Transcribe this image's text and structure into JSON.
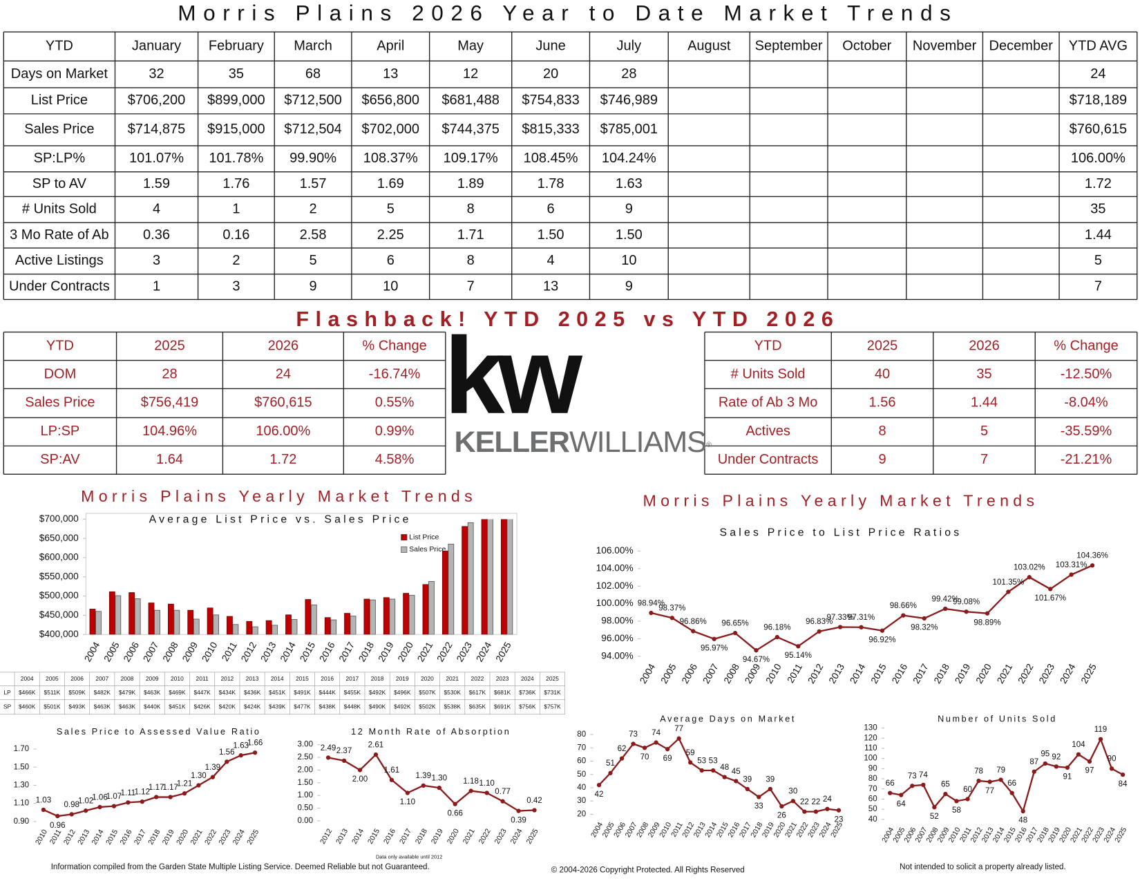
{
  "title": "Morris Plains 2026 Year to Date Market Trends",
  "table": {
    "header": [
      "YTD",
      "January",
      "February",
      "March",
      "April",
      "May",
      "June",
      "July",
      "August",
      "September",
      "October",
      "November",
      "December",
      "YTD AVG"
    ],
    "rows": [
      {
        "label": "Days on Market",
        "values": [
          "32",
          "35",
          "68",
          "13",
          "12",
          "20",
          "28"
        ],
        "avg": "24"
      },
      {
        "label": "List Price",
        "values": [
          "$706,200",
          "$899,000",
          "$712,500",
          "$656,800",
          "$681,488",
          "$754,833",
          "$746,989"
        ],
        "avg": "$718,189"
      },
      {
        "label": "Sales Price",
        "values": [
          "$714,875",
          "$915,000",
          "$712,504",
          "$702,000",
          "$744,375",
          "$815,333",
          "$785,001"
        ],
        "avg": "$760,615"
      },
      {
        "label": "SP:LP%",
        "values": [
          "101.07%",
          "101.78%",
          "99.90%",
          "108.37%",
          "109.17%",
          "108.45%",
          "104.24%"
        ],
        "avg": "106.00%"
      },
      {
        "label": "SP to AV",
        "values": [
          "1.59",
          "1.76",
          "1.57",
          "1.69",
          "1.89",
          "1.78",
          "1.63"
        ],
        "avg": "1.72"
      },
      {
        "label": "# Units Sold",
        "values": [
          "4",
          "1",
          "2",
          "5",
          "8",
          "6",
          "9"
        ],
        "avg": "35"
      },
      {
        "label": "3 Mo Rate of Ab",
        "values": [
          "0.36",
          "0.16",
          "2.58",
          "2.25",
          "1.71",
          "1.50",
          "1.50"
        ],
        "avg": "1.44"
      },
      {
        "label": "Active Listings",
        "values": [
          "3",
          "2",
          "5",
          "6",
          "8",
          "4",
          "10"
        ],
        "avg": "5"
      },
      {
        "label": "Under Contracts",
        "values": [
          "1",
          "3",
          "9",
          "10",
          "7",
          "13",
          "9"
        ],
        "avg": "7"
      }
    ]
  },
  "flashback": {
    "title": "Flashback!  YTD 2025 vs YTD 2026",
    "left": {
      "header": [
        "YTD",
        "2025",
        "2026",
        "% Change"
      ],
      "rows": [
        {
          "label": "DOM",
          "cells": [
            "28",
            "24",
            "-16.74%"
          ]
        },
        {
          "label": "Sales Price",
          "cells": [
            "$756,419",
            "$760,615",
            "0.55%"
          ]
        },
        {
          "label": "LP:SP",
          "cells": [
            "104.96%",
            "106.00%",
            "0.99%"
          ]
        },
        {
          "label": "SP:AV",
          "cells": [
            "1.64",
            "1.72",
            "4.58%"
          ]
        }
      ]
    },
    "right": {
      "header": [
        "YTD",
        "2025",
        "2026",
        "% Change"
      ],
      "rows": [
        {
          "label": "# Units Sold",
          "cells": [
            "40",
            "35",
            "-12.50%"
          ]
        },
        {
          "label": "Rate of Ab 3 Mo",
          "cells": [
            "1.56",
            "1.44",
            "-8.04%"
          ]
        },
        {
          "label": "Actives",
          "cells": [
            "8",
            "5",
            "-35.59%"
          ]
        },
        {
          "label": "Under Contracts",
          "cells": [
            "9",
            "7",
            "-21.21%"
          ]
        }
      ]
    }
  },
  "logo": {
    "mark": "kw",
    "wordmark_bold": "KELLER",
    "wordmark": "WILLIAMS",
    "registered": "®"
  },
  "chart_data": [
    {
      "type": "bar",
      "heading": "Morris Plains Yearly Market Trends",
      "title": "Average List Price vs. Sales Price",
      "categories": [
        "2004",
        "2005",
        "2006",
        "2007",
        "2008",
        "2009",
        "2010",
        "2011",
        "2012",
        "2013",
        "2014",
        "2015",
        "2016",
        "2017",
        "2018",
        "2019",
        "2020",
        "2021",
        "2022",
        "2023",
        "2024",
        "2025"
      ],
      "series": [
        {
          "name": "List Price",
          "table_label": "LP",
          "color": "#c00000",
          "values": [
            466000,
            511000,
            509000,
            482000,
            479000,
            463000,
            469000,
            447000,
            434000,
            436000,
            451000,
            491000,
            444000,
            455000,
            492000,
            496000,
            507000,
            530000,
            617000,
            681000,
            736000,
            731000
          ],
          "value_labels": [
            "$466K",
            "$511K",
            "$509K",
            "$482K",
            "$479K",
            "$463K",
            "$469K",
            "$447K",
            "$434K",
            "$436K",
            "$451K",
            "$491K",
            "$444K",
            "$455K",
            "$492K",
            "$496K",
            "$507K",
            "$530K",
            "$617K",
            "$681K",
            "$736K",
            "$731K"
          ]
        },
        {
          "name": "Sales Price",
          "table_label": "SP",
          "color": "#b4b4b4",
          "values": [
            460000,
            501000,
            493000,
            463000,
            463000,
            440000,
            451000,
            426000,
            420000,
            424000,
            439000,
            477000,
            438000,
            448000,
            490000,
            492000,
            502000,
            538000,
            635000,
            691000,
            756000,
            757000
          ],
          "value_labels": [
            "$460K",
            "$501K",
            "$493K",
            "$463K",
            "$463K",
            "$440K",
            "$451K",
            "$426K",
            "$420K",
            "$424K",
            "$439K",
            "$477K",
            "$438K",
            "$448K",
            "$490K",
            "$492K",
            "$502K",
            "$538K",
            "$635K",
            "$691K",
            "$756K",
            "$757K"
          ]
        }
      ],
      "ylim": [
        400000,
        700000
      ],
      "yticks": [
        {
          "value": 400000,
          "label": "$400,000"
        },
        {
          "value": 450000,
          "label": "$450,000"
        },
        {
          "value": 500000,
          "label": "$500,000"
        },
        {
          "value": 550000,
          "label": "$550,000"
        },
        {
          "value": 600000,
          "label": "$600,000"
        },
        {
          "value": 650000,
          "label": "$650,000"
        },
        {
          "value": 700000,
          "label": "$700,000"
        }
      ]
    },
    {
      "type": "line",
      "heading": "Morris Plains Yearly Market Trends",
      "title": "Sales Price to List Price Ratios",
      "color": "#8b1a1a",
      "categories": [
        "2004",
        "2005",
        "2006",
        "2007",
        "2008",
        "2009",
        "2010",
        "2011",
        "2012",
        "2013",
        "2014",
        "2015",
        "2016",
        "2017",
        "2018",
        "2019",
        "2020",
        "2021",
        "2022",
        "2023",
        "2024",
        "2025"
      ],
      "values": [
        98.94,
        98.37,
        96.86,
        95.97,
        96.65,
        94.67,
        96.18,
        95.14,
        96.83,
        97.33,
        97.31,
        96.92,
        98.66,
        98.32,
        99.42,
        99.08,
        98.89,
        101.35,
        103.02,
        101.67,
        103.31,
        104.36
      ],
      "value_labels": [
        "98.94%",
        "98.37%",
        "96.86%",
        "95.97%",
        "96.65%",
        "94.67%",
        "96.18%",
        "95.14%",
        "96.83%",
        "97.33%",
        "97.31%",
        "96.92%",
        "98.66%",
        "98.32%",
        "99.42%",
        "99.08%",
        "98.89%",
        "101.35%",
        "103.02%",
        "101.67%",
        "103.31%",
        "104.36%"
      ],
      "ylim": [
        94,
        106
      ],
      "yticks": [
        {
          "value": 94,
          "label": "94.00%"
        },
        {
          "value": 96,
          "label": "96.00%"
        },
        {
          "value": 98,
          "label": "98.00%"
        },
        {
          "value": 100,
          "label": "100.00%"
        },
        {
          "value": 102,
          "label": "102.00%"
        },
        {
          "value": 104,
          "label": "104.00%"
        },
        {
          "value": 106,
          "label": "106.00%"
        }
      ]
    },
    {
      "type": "line",
      "title": "Sales Price to Assessed Value Ratio",
      "color": "#8b1a1a",
      "categories": [
        "2010",
        "2011",
        "2012",
        "2013",
        "2014",
        "2015",
        "2016",
        "2017",
        "2018",
        "2019",
        "2020",
        "2021",
        "2022",
        "2023",
        "2024",
        "2025"
      ],
      "values": [
        1.03,
        0.96,
        0.98,
        1.02,
        1.06,
        1.07,
        1.11,
        1.12,
        1.17,
        1.17,
        1.21,
        1.3,
        1.39,
        1.56,
        1.63,
        1.66
      ],
      "value_labels": [
        "1.03",
        "0.96",
        "0.98",
        "1.02",
        "1.06",
        "1.07",
        "1.11",
        "1.12",
        "1.17",
        "1.17",
        "1.21",
        "1.30",
        "1.39",
        "1.56",
        "1.63",
        "1.66"
      ],
      "ylim": [
        0.9,
        1.7
      ],
      "yticks": [
        {
          "value": 0.9,
          "label": "0.90"
        },
        {
          "value": 1.1,
          "label": "1.10"
        },
        {
          "value": 1.3,
          "label": "1.30"
        },
        {
          "value": 1.5,
          "label": "1.50"
        },
        {
          "value": 1.7,
          "label": "1.70"
        }
      ]
    },
    {
      "type": "line",
      "title": "12 Month Rate of Absorption",
      "note": "Data only available until 2012",
      "color": "#8b1a1a",
      "categories": [
        "2012",
        "2013",
        "2014",
        "2015",
        "2016",
        "2017",
        "2018",
        "2019",
        "2020",
        "2021",
        "2022",
        "2023",
        "2024",
        "2025"
      ],
      "values": [
        2.49,
        2.37,
        2.0,
        2.61,
        1.61,
        1.1,
        1.39,
        1.3,
        0.66,
        1.18,
        1.1,
        0.77,
        0.39,
        0.42
      ],
      "value_labels": [
        "2.49",
        "2.37",
        "2.00",
        "2.61",
        "1.61",
        "1.10",
        "1.39",
        "1.30",
        "0.66",
        "1.18",
        "1.10",
        "0.77",
        "0.39",
        "0.42"
      ],
      "ylim": [
        0,
        3
      ],
      "yticks": [
        {
          "value": 0,
          "label": "0.00"
        },
        {
          "value": 0.5,
          "label": "0.50"
        },
        {
          "value": 1,
          "label": "1.00"
        },
        {
          "value": 1.5,
          "label": "1.50"
        },
        {
          "value": 2,
          "label": "2.00"
        },
        {
          "value": 2.5,
          "label": "2.50"
        },
        {
          "value": 3,
          "label": "3.00"
        }
      ]
    },
    {
      "type": "line",
      "title": "Average Days on Market",
      "color": "#8b1a1a",
      "categories": [
        "2004",
        "2005",
        "2006",
        "2007",
        "2008",
        "2009",
        "2010",
        "2011",
        "2012",
        "2013",
        "2014",
        "2015",
        "2016",
        "2017",
        "2018",
        "2019",
        "2020",
        "2021",
        "2022",
        "2023",
        "2024",
        "2025"
      ],
      "values": [
        42,
        51,
        62,
        73,
        70,
        74,
        69,
        77,
        59,
        53,
        53,
        48,
        45,
        39,
        33,
        39,
        26,
        30,
        22,
        22,
        24,
        23
      ],
      "ylim": [
        20,
        80
      ],
      "yticks": [
        20,
        30,
        40,
        50,
        60,
        70,
        80
      ]
    },
    {
      "type": "line",
      "title": "Number of Units Sold",
      "color": "#8b1a1a",
      "categories": [
        "2004",
        "2005",
        "2006",
        "2007",
        "2008",
        "2009",
        "2010",
        "2011",
        "2012",
        "2013",
        "2014",
        "2015",
        "2016",
        "2017",
        "2018",
        "2019",
        "2020",
        "2021",
        "2022",
        "2023",
        "2024",
        "2025"
      ],
      "values": [
        66,
        64,
        73,
        74,
        52,
        65,
        58,
        60,
        78,
        77,
        79,
        66,
        48,
        87,
        95,
        92,
        91,
        104,
        97,
        119,
        90,
        84
      ],
      "ylim": [
        40,
        130
      ],
      "yticks": [
        40,
        50,
        60,
        70,
        80,
        90,
        100,
        110,
        120,
        130
      ]
    }
  ],
  "footer": {
    "left": "Information compiled from the Garden State Multiple Listing Service.  Deemed Reliable but not Guaranteed.",
    "center": "© 2004-2026 Copyright Protected.  All Rights Reserved",
    "right": "Not intended to solicit a property already listed."
  }
}
